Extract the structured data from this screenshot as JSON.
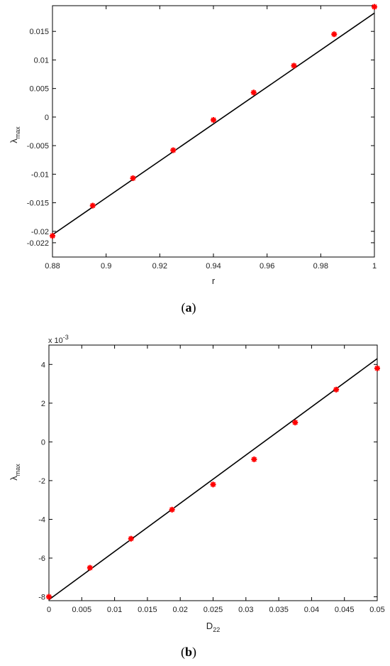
{
  "chart_data": [
    {
      "type": "scatter",
      "panel_label": "a",
      "xlabel": "r",
      "ylabel_main": "λ",
      "ylabel_sub": "max",
      "xlim": [
        0.88,
        1.0
      ],
      "ylim": [
        -0.0245,
        0.0195
      ],
      "x_ticks": [
        {
          "v": 0.88,
          "label": "0.88"
        },
        {
          "v": 0.9,
          "label": "0.9"
        },
        {
          "v": 0.92,
          "label": "0.92"
        },
        {
          "v": 0.94,
          "label": "0.94"
        },
        {
          "v": 0.96,
          "label": "0.96"
        },
        {
          "v": 0.98,
          "label": "0.98"
        },
        {
          "v": 1.0,
          "label": "1"
        }
      ],
      "y_ticks": [
        {
          "v": 0.015,
          "label": "0.015"
        },
        {
          "v": 0.01,
          "label": "0.01"
        },
        {
          "v": 0.005,
          "label": "0.005"
        },
        {
          "v": 0,
          "label": "0"
        },
        {
          "v": -0.005,
          "label": "-0.005"
        },
        {
          "v": -0.01,
          "label": "-0.01"
        },
        {
          "v": -0.015,
          "label": "-0.015"
        },
        {
          "v": -0.02,
          "label": "-0.02"
        },
        {
          "v": -0.022,
          "label": "-0.022"
        }
      ],
      "series": [
        {
          "kind": "points",
          "color": "#ff0000",
          "x": [
            0.88,
            0.895,
            0.91,
            0.925,
            0.94,
            0.955,
            0.97,
            0.985,
            1.0
          ],
          "y": [
            -0.0208,
            -0.0155,
            -0.0107,
            -0.0058,
            -0.0005,
            0.0043,
            0.009,
            0.0145,
            0.0193
          ]
        },
        {
          "kind": "line",
          "color": "#000000",
          "x": [
            0.88,
            1.0
          ],
          "y": [
            -0.0206,
            0.0182
          ]
        }
      ]
    },
    {
      "type": "scatter",
      "panel_label": "b",
      "xlabel_main": "D",
      "xlabel_sub": "22",
      "ylabel_main": "λ",
      "ylabel_sub": "max",
      "exponent_main": "x 10",
      "exponent_sup": "-3",
      "xlim": [
        0,
        0.05
      ],
      "ylim": [
        -8.2,
        5.0
      ],
      "x_ticks": [
        {
          "v": 0,
          "label": "0"
        },
        {
          "v": 0.005,
          "label": "0.005"
        },
        {
          "v": 0.01,
          "label": "0.01"
        },
        {
          "v": 0.015,
          "label": "0.015"
        },
        {
          "v": 0.02,
          "label": "0.02"
        },
        {
          "v": 0.025,
          "label": "0.025"
        },
        {
          "v": 0.03,
          "label": "0.03"
        },
        {
          "v": 0.035,
          "label": "0.035"
        },
        {
          "v": 0.04,
          "label": "0.04"
        },
        {
          "v": 0.045,
          "label": "0.045"
        },
        {
          "v": 0.05,
          "label": "0.05"
        }
      ],
      "y_ticks": [
        {
          "v": 4,
          "label": "4"
        },
        {
          "v": 2,
          "label": "2"
        },
        {
          "v": 0,
          "label": "0"
        },
        {
          "v": -2,
          "label": "-2"
        },
        {
          "v": -4,
          "label": "-4"
        },
        {
          "v": -6,
          "label": "-6"
        },
        {
          "v": -8,
          "label": "-8"
        }
      ],
      "series": [
        {
          "kind": "points",
          "color": "#ff0000",
          "x": [
            0,
            0.00625,
            0.0125,
            0.01875,
            0.025,
            0.03125,
            0.0375,
            0.04375,
            0.05
          ],
          "y": [
            -8.0,
            -6.5,
            -5.0,
            -3.5,
            -2.2,
            -0.9,
            1.0,
            2.7,
            3.8
          ]
        },
        {
          "kind": "line",
          "color": "#000000",
          "x": [
            0,
            0.05
          ],
          "y": [
            -8.15,
            4.3
          ]
        }
      ]
    }
  ]
}
